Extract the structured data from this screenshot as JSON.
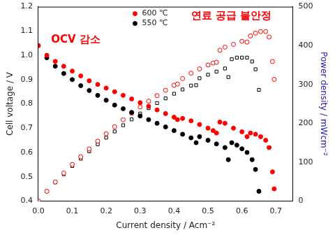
{
  "chart_data": {
    "type": "scatter",
    "x_label": "Current density / Acm⁻²",
    "y_label": "Cell voltage / V",
    "y2_label": "Power density / mWcm⁻²",
    "annotations": [
      "OCV 감소",
      "연료 공급 불안정"
    ],
    "xlim": [
      0,
      0.75
    ],
    "xticks": [
      {
        "value": 0,
        "label": "0.0"
      },
      0.1,
      0.2,
      0.3,
      0.4,
      0.5,
      0.6,
      0.7
    ],
    "ylim": [
      0.4,
      1.2
    ],
    "yticks": [
      0.4,
      0.5,
      0.6,
      0.7,
      0.8,
      0.9,
      {
        "value": 1,
        "label": "1.0"
      },
      1.1,
      1.2
    ],
    "y2lim": [
      0,
      500
    ],
    "y2ticks": [
      0,
      100,
      200,
      300,
      400,
      500
    ],
    "grid": false,
    "legend": "top",
    "series": [
      {
        "name": "600 ℃",
        "color": "#ff0000",
        "marker": "circle",
        "x": [
          0,
          0.025,
          0.05,
          0.075,
          0.1,
          0.125,
          0.15,
          0.175,
          0.2,
          0.225,
          0.25,
          0.275,
          0.3,
          0.325,
          0.35,
          0.375,
          0.4,
          0.41,
          0.425,
          0.45,
          0.475,
          0.5,
          0.515,
          0.525,
          0.535,
          0.55,
          0.575,
          0.6,
          0.615,
          0.625,
          0.64,
          0.655,
          0.67,
          0.68,
          0.69,
          0.695
        ],
        "values": [
          1.04,
          1.0,
          0.975,
          0.955,
          0.935,
          0.915,
          0.895,
          0.88,
          0.865,
          0.85,
          0.835,
          0.82,
          0.805,
          0.79,
          0.775,
          0.76,
          0.745,
          0.735,
          0.74,
          0.73,
          0.715,
          0.7,
          0.69,
          0.68,
          0.725,
          0.72,
          0.7,
          0.685,
          0.665,
          0.68,
          0.675,
          0.665,
          0.65,
          0.62,
          0.52,
          0.45
        ]
      },
      {
        "name": "550 ℃",
        "color": "#000000",
        "marker": "circle",
        "x": [
          0,
          0.025,
          0.05,
          0.075,
          0.1,
          0.125,
          0.15,
          0.175,
          0.2,
          0.225,
          0.25,
          0.275,
          0.3,
          0.325,
          0.35,
          0.375,
          0.4,
          0.425,
          0.45,
          0.465,
          0.475,
          0.5,
          0.525,
          0.55,
          0.56,
          0.57,
          0.585,
          0.6,
          0.615,
          0.63,
          0.64,
          0.65
        ],
        "values": [
          1.04,
          0.99,
          0.955,
          0.925,
          0.9,
          0.875,
          0.855,
          0.835,
          0.815,
          0.795,
          0.78,
          0.765,
          0.75,
          0.735,
          0.72,
          0.705,
          0.69,
          0.675,
          0.66,
          0.64,
          0.665,
          0.65,
          0.635,
          0.62,
          0.57,
          0.64,
          0.63,
          0.615,
          0.6,
          0.57,
          0.53,
          0.44
        ]
      },
      {
        "name": "600 ℃",
        "color": "#ff0000",
        "marker": "circle-open",
        "axis": "y2",
        "x": [
          0,
          0.025,
          0.05,
          0.075,
          0.1,
          0.125,
          0.15,
          0.175,
          0.2,
          0.225,
          0.25,
          0.275,
          0.3,
          0.325,
          0.35,
          0.375,
          0.4,
          0.41,
          0.425,
          0.45,
          0.475,
          0.5,
          0.515,
          0.525,
          0.535,
          0.55,
          0.575,
          0.6,
          0.615,
          0.625,
          0.64,
          0.655,
          0.67,
          0.68,
          0.69,
          0.695
        ],
        "values": [
          0,
          25,
          49,
          72,
          94,
          114,
          134,
          154,
          173,
          191,
          209,
          226,
          242,
          257,
          271,
          285,
          298,
          301,
          315,
          329,
          340,
          350,
          355,
          357,
          388,
          396,
          403,
          411,
          409,
          425,
          432,
          436,
          436,
          422,
          359,
          313
        ]
      },
      {
        "name": "550 ℃",
        "color": "#000000",
        "marker": "square-open",
        "axis": "y2",
        "x": [
          0,
          0.025,
          0.05,
          0.075,
          0.1,
          0.125,
          0.15,
          0.175,
          0.2,
          0.225,
          0.25,
          0.275,
          0.3,
          0.325,
          0.35,
          0.375,
          0.4,
          0.425,
          0.45,
          0.465,
          0.475,
          0.5,
          0.525,
          0.55,
          0.56,
          0.57,
          0.585,
          0.6,
          0.615,
          0.63,
          0.64,
          0.65
        ],
        "values": [
          0,
          25,
          48,
          69,
          90,
          109,
          128,
          146,
          163,
          179,
          195,
          210,
          225,
          239,
          252,
          264,
          276,
          287,
          297,
          298,
          316,
          325,
          333,
          341,
          319,
          365,
          369,
          369,
          369,
          359,
          339,
          286
        ]
      }
    ]
  }
}
